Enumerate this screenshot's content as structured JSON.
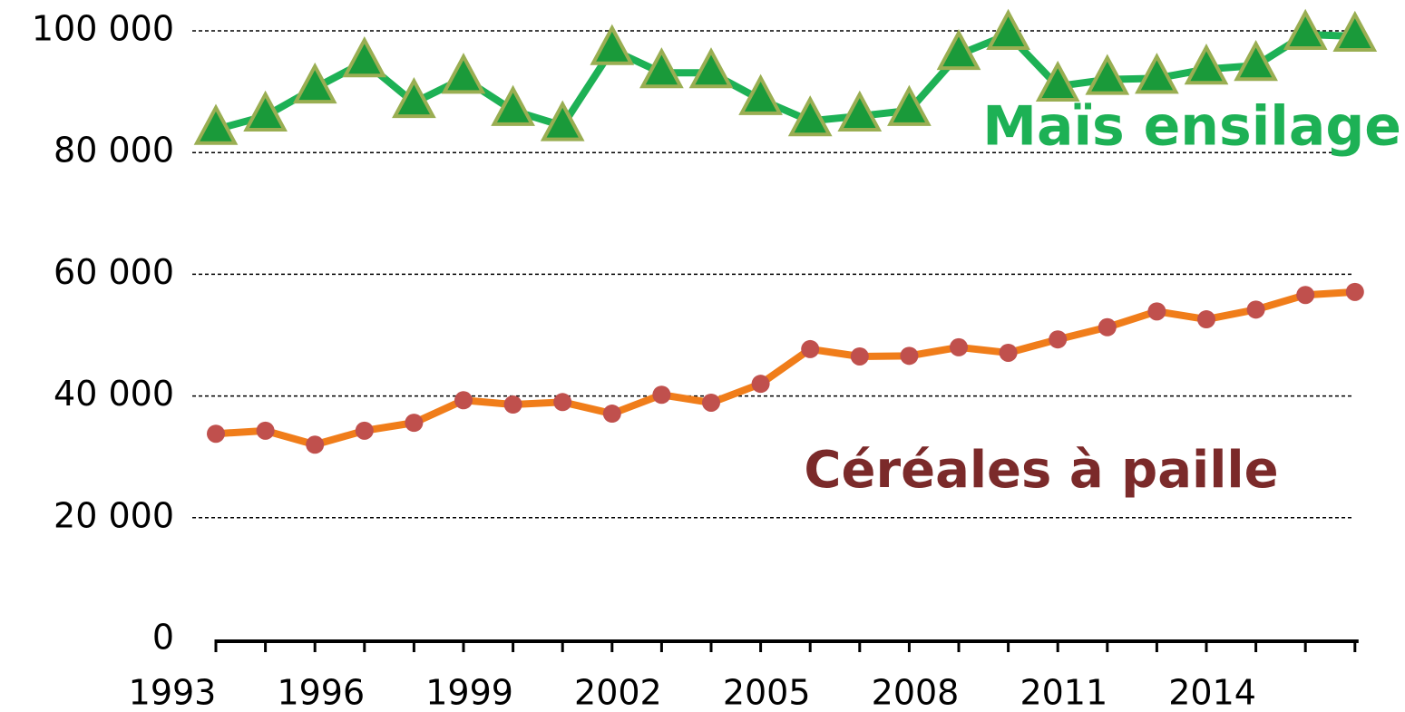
{
  "chart_data": {
    "type": "line",
    "categories": [
      "1993",
      null,
      null,
      "1996",
      null,
      null,
      "1999",
      null,
      null,
      "2002",
      null,
      null,
      "2005",
      null,
      null,
      "2008",
      null,
      null,
      "2011",
      null,
      null,
      "2014",
      null,
      null
    ],
    "series": [
      {
        "name": "Maïs ensilage",
        "color": "#1db155",
        "marker": "triangle",
        "marker_color": "#1a9a3a",
        "values": [
          83800,
          86000,
          90600,
          94900,
          88200,
          92200,
          86900,
          84400,
          96900,
          93100,
          93100,
          88700,
          85200,
          86000,
          86900,
          96100,
          99400,
          90900,
          92000,
          92200,
          93700,
          94300,
          99400,
          99100
        ]
      },
      {
        "name": "Céréales à paille",
        "color": "#f07d1a",
        "marker": "circle",
        "marker_color": "#c0504d",
        "label_color": "#7b2a2a",
        "values": [
          33800,
          34300,
          32000,
          34300,
          35600,
          39300,
          38600,
          39000,
          37100,
          40200,
          38900,
          42000,
          47700,
          46500,
          46600,
          48000,
          47100,
          49300,
          51300,
          53900,
          52600,
          54200,
          56600,
          57100
        ]
      }
    ],
    "ylim": [
      0,
      100000
    ],
    "yticks": [
      {
        "value": 0,
        "label": "0"
      },
      {
        "value": 20000,
        "label": "20 000"
      },
      {
        "value": 40000,
        "label": "40 000"
      },
      {
        "value": 60000,
        "label": "60 000"
      },
      {
        "value": 80000,
        "label": "80 000"
      },
      {
        "value": 100000,
        "label": "100 000"
      }
    ],
    "grid": true
  }
}
